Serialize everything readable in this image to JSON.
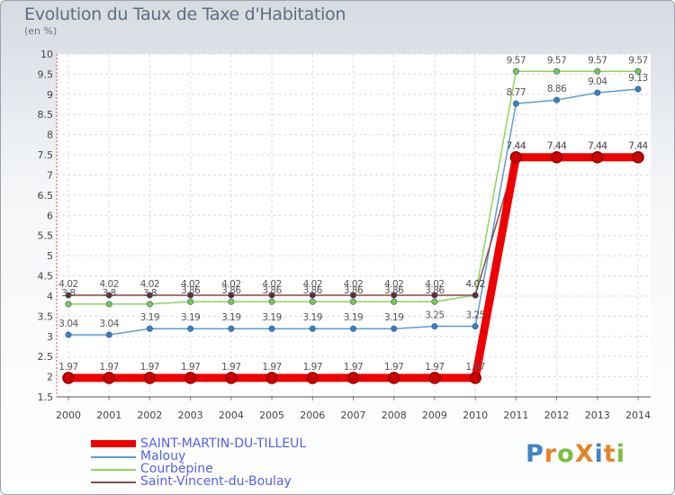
{
  "title": "Evolution du Taux de Taxe d'Habitation",
  "subtitle": "(en %)",
  "logo": {
    "text": "ProXiti",
    "letters": [
      "P",
      "r",
      "o",
      "X",
      "i",
      "t",
      "i"
    ],
    "colors": [
      "#3f83c8",
      "#e6832a",
      "#7cbf3f",
      "#e6832a",
      "#3f83c8",
      "#e6832a",
      "#7cbf3f"
    ]
  },
  "chart_data": {
    "type": "line",
    "x": [
      2000,
      2001,
      2002,
      2003,
      2004,
      2005,
      2006,
      2007,
      2008,
      2009,
      2010,
      2011,
      2012,
      2013,
      2014
    ],
    "ylim": [
      1.5,
      10
    ],
    "yticks": [
      1.5,
      2,
      2.5,
      3,
      3.5,
      4,
      4.5,
      5,
      5.5,
      6,
      6.5,
      7,
      7.5,
      8,
      8.5,
      9,
      9.5,
      10
    ],
    "grid": true,
    "legend_position": "bottom-left",
    "series": [
      {
        "name": "SAINT-MARTIN-DU-TILLEUL",
        "color": "#ee0000",
        "point_color": "#cc0000",
        "width": 9,
        "values": [
          1.97,
          1.97,
          1.97,
          1.97,
          1.97,
          1.97,
          1.97,
          1.97,
          1.97,
          1.97,
          1.97,
          7.44,
          7.44,
          7.44,
          7.44
        ],
        "labels": [
          "1.97",
          "1.97",
          "1.97",
          "1.97",
          "1.97",
          "1.97",
          "1.97",
          "1.97",
          "1.97",
          "1.97",
          "1.97",
          "7.44",
          "7.44",
          "7.44",
          "7.44"
        ]
      },
      {
        "name": "Malouy",
        "color": "#5d9cd2",
        "point_color": "#3c7fc1",
        "width": 1.5,
        "values": [
          3.04,
          3.04,
          3.19,
          3.19,
          3.19,
          3.19,
          3.19,
          3.19,
          3.19,
          3.25,
          3.25,
          8.77,
          8.86,
          9.04,
          9.13
        ],
        "labels": [
          "3.04",
          "3.04",
          "3.19",
          "3.19",
          "3.19",
          "3.19",
          "3.19",
          "3.19",
          "3.19",
          "3.25",
          "3.25",
          "8.77",
          "8.86",
          "9.04",
          "9.13"
        ]
      },
      {
        "name": "Courbépine",
        "color": "#8fd45a",
        "point_color": "#7cc84a",
        "width": 1.5,
        "values": [
          3.8,
          3.8,
          3.8,
          3.86,
          3.86,
          3.86,
          3.86,
          3.86,
          3.86,
          3.86,
          4.02,
          9.57,
          9.57,
          9.57,
          9.57
        ],
        "labels": [
          "3.8",
          "3.8",
          "3.8",
          "3.86",
          "3.86",
          "3.86",
          "3.86",
          "3.86",
          "3.86",
          "3.86",
          "4.02",
          "9.57",
          "9.57",
          "9.57",
          "9.57"
        ]
      },
      {
        "name": "Saint-Vincent-du-Boulay",
        "color": "#8b4a4a",
        "point_color": "#6a2a2a",
        "width": 1.5,
        "values": [
          4.02,
          4.02,
          4.02,
          4.02,
          4.02,
          4.02,
          4.02,
          4.02,
          4.02,
          4.02,
          4.02,
          7.44,
          7.44,
          7.44,
          7.44
        ],
        "labels": [
          "4.02",
          "4.02",
          "4.02",
          "4.02",
          "4.02",
          "4.02",
          "4.02",
          "4.02",
          "4.02",
          "4.02",
          "4.02",
          "7.44",
          "7.44",
          "7.44",
          "7.44"
        ]
      }
    ]
  }
}
